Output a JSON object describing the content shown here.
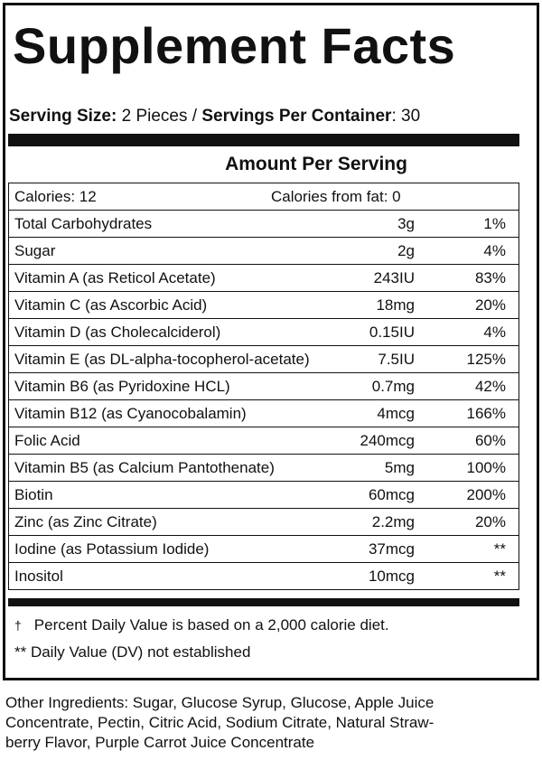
{
  "title": "Supplement Facts",
  "serving": {
    "size_label": "Serving Size:",
    "size_value": "2 Pieces /",
    "container_label": "Servings Per Container",
    "container_value": ": 30"
  },
  "amount_header": "Amount Per Serving",
  "calories": {
    "calories": "Calories: 12",
    "from_fat": "Calories from fat: 0"
  },
  "table": {
    "rows": [
      [
        "Total Carbohydrates",
        "3g",
        "1%"
      ],
      [
        "Sugar",
        "2g",
        "4%"
      ],
      [
        "Vitamin A (as Reticol Acetate)",
        "243IU",
        "83%"
      ],
      [
        "Vitamin C (as Ascorbic Acid)",
        "18mg",
        "20%"
      ],
      [
        "Vitamin D (as Cholecalciderol)",
        "0.15IU",
        "4%"
      ],
      [
        "Vitamin E (as DL-alpha-tocopherol-acetate)",
        "7.5IU",
        "125%"
      ],
      [
        "Vitamin B6 (as Pyridoxine HCL)",
        "0.7mg",
        "42%"
      ],
      [
        "Vitamin B12 (as Cyanocobalamin)",
        "4mcg",
        "166%"
      ],
      [
        "Folic Acid",
        "240mcg",
        "60%"
      ],
      [
        "Vitamin B5 (as Calcium Pantothenate)",
        "5mg",
        "100%"
      ],
      [
        "Biotin",
        "60mcg",
        "200%"
      ],
      [
        "Zinc (as Zinc Citrate)",
        "2.2mg",
        "20%"
      ],
      [
        "Iodine (as Potassium Iodide)",
        "37mcg",
        "**"
      ],
      [
        "Inositol",
        "10mcg",
        "**"
      ]
    ]
  },
  "footnotes": {
    "dagger_symbol": "†",
    "dagger_text": "Percent Daily Value is based on a 2,000 calorie diet.",
    "dv_note": "** Daily Value (DV) not established"
  },
  "other_ingredients": {
    "lines": [
      "Other Ingredients: Sugar, Glucose Syrup, Glucose, Apple Juice",
      "Concentrate, Pectin, Citric Acid, Sodium Citrate, Natural Straw-",
      "berry Flavor, Purple Carrot Juice Concentrate"
    ]
  }
}
